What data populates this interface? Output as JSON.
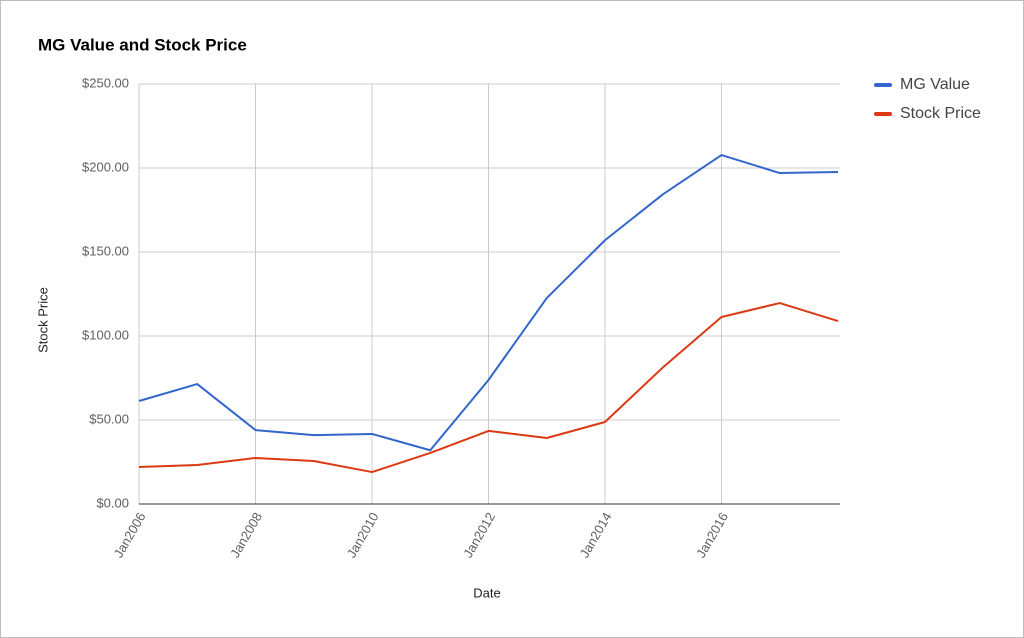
{
  "chart_data": {
    "type": "line",
    "title": "MG Value and Stock Price",
    "x_label": "Date",
    "y_label": "Stock Price",
    "categories": [
      "Jan2006",
      null,
      "Jan2008",
      null,
      "Jan2010",
      null,
      "Jan2012",
      null,
      "Jan2014",
      null,
      "Jan2016",
      null,
      null
    ],
    "series": [
      {
        "name": "MG Value",
        "color": "#3366cc",
        "values": [
          61.3,
          71.4,
          44,
          41,
          41.7,
          32,
          73.8,
          122.6,
          157,
          184.5,
          207.7,
          197,
          197.6
        ]
      },
      {
        "name": "Stock Price",
        "color": "#dc3912",
        "values": [
          22,
          23.2,
          27.4,
          25.6,
          19,
          30.4,
          43.5,
          39.3,
          48.8,
          81.5,
          111.3,
          119.6,
          108.9
        ]
      }
    ],
    "ylim": [
      0,
      250
    ],
    "yticks": [
      {
        "value": 0,
        "label": "$0.00"
      },
      {
        "value": 50,
        "label": "$50.00"
      },
      {
        "value": 100,
        "label": "$100.00"
      },
      {
        "value": 150,
        "label": "$150.00"
      },
      {
        "value": 200,
        "label": "$200.00"
      },
      {
        "value": 250,
        "label": "$250.00"
      }
    ],
    "grid": true,
    "legend": "right"
  }
}
